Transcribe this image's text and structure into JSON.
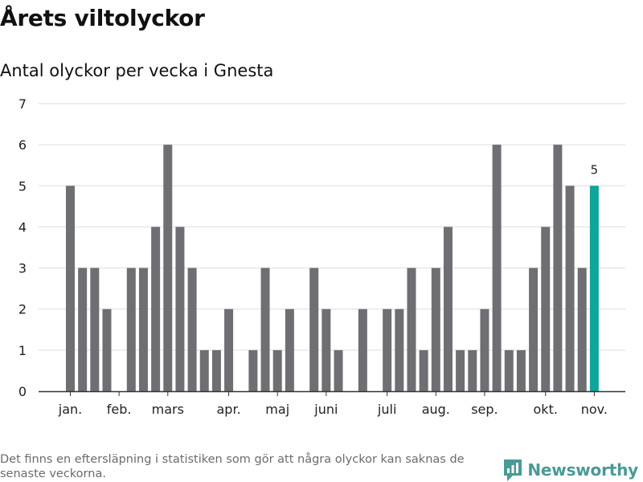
{
  "header": {
    "title": "Årets viltolyckor",
    "subtitle": "Antal olyckor per vecka i Gnesta"
  },
  "footer": {
    "note": "Det finns en eftersläpning i statistiken som gör att några olyckor kan saknas de senaste veckorna.",
    "brand": "Newsworthy"
  },
  "colors": {
    "bar": "#6f6e73",
    "highlight": "#0ea59a",
    "grid": "#dddddd",
    "axis": "#333333",
    "brand": "#4a9a96"
  },
  "chart_data": {
    "type": "bar",
    "title": "Antal olyckor per vecka i Gnesta",
    "xlabel": "",
    "ylabel": "",
    "ylim": [
      0,
      7
    ],
    "yticks": [
      0,
      1,
      2,
      3,
      4,
      5,
      6,
      7
    ],
    "grid": true,
    "weeks": [
      1,
      2,
      3,
      4,
      5,
      6,
      7,
      8,
      9,
      10,
      11,
      12,
      13,
      14,
      15,
      16,
      17,
      18,
      19,
      20,
      21,
      22,
      23,
      24,
      25,
      26,
      27,
      28,
      29,
      30,
      31,
      32,
      33,
      34,
      35,
      36,
      37,
      38,
      39,
      40,
      41,
      42,
      43,
      44
    ],
    "values": [
      5,
      3,
      3,
      2,
      0,
      3,
      3,
      4,
      6,
      4,
      3,
      1,
      1,
      2,
      0,
      1,
      3,
      1,
      2,
      0,
      3,
      2,
      1,
      0,
      2,
      0,
      2,
      2,
      3,
      1,
      3,
      4,
      1,
      1,
      2,
      6,
      1,
      1,
      3,
      4,
      6,
      5,
      3,
      5
    ],
    "highlight_index": 43,
    "data_labels": [
      {
        "index": 43,
        "text": "5"
      }
    ],
    "month_ticks": [
      {
        "label": "jan.",
        "week": 1
      },
      {
        "label": "feb.",
        "week": 5
      },
      {
        "label": "mars",
        "week": 9
      },
      {
        "label": "apr.",
        "week": 14
      },
      {
        "label": "maj",
        "week": 18
      },
      {
        "label": "juni",
        "week": 22
      },
      {
        "label": "juli",
        "week": 27
      },
      {
        "label": "aug.",
        "week": 31
      },
      {
        "label": "sep.",
        "week": 35
      },
      {
        "label": "okt.",
        "week": 40
      },
      {
        "label": "nov.",
        "week": 44
      }
    ]
  }
}
